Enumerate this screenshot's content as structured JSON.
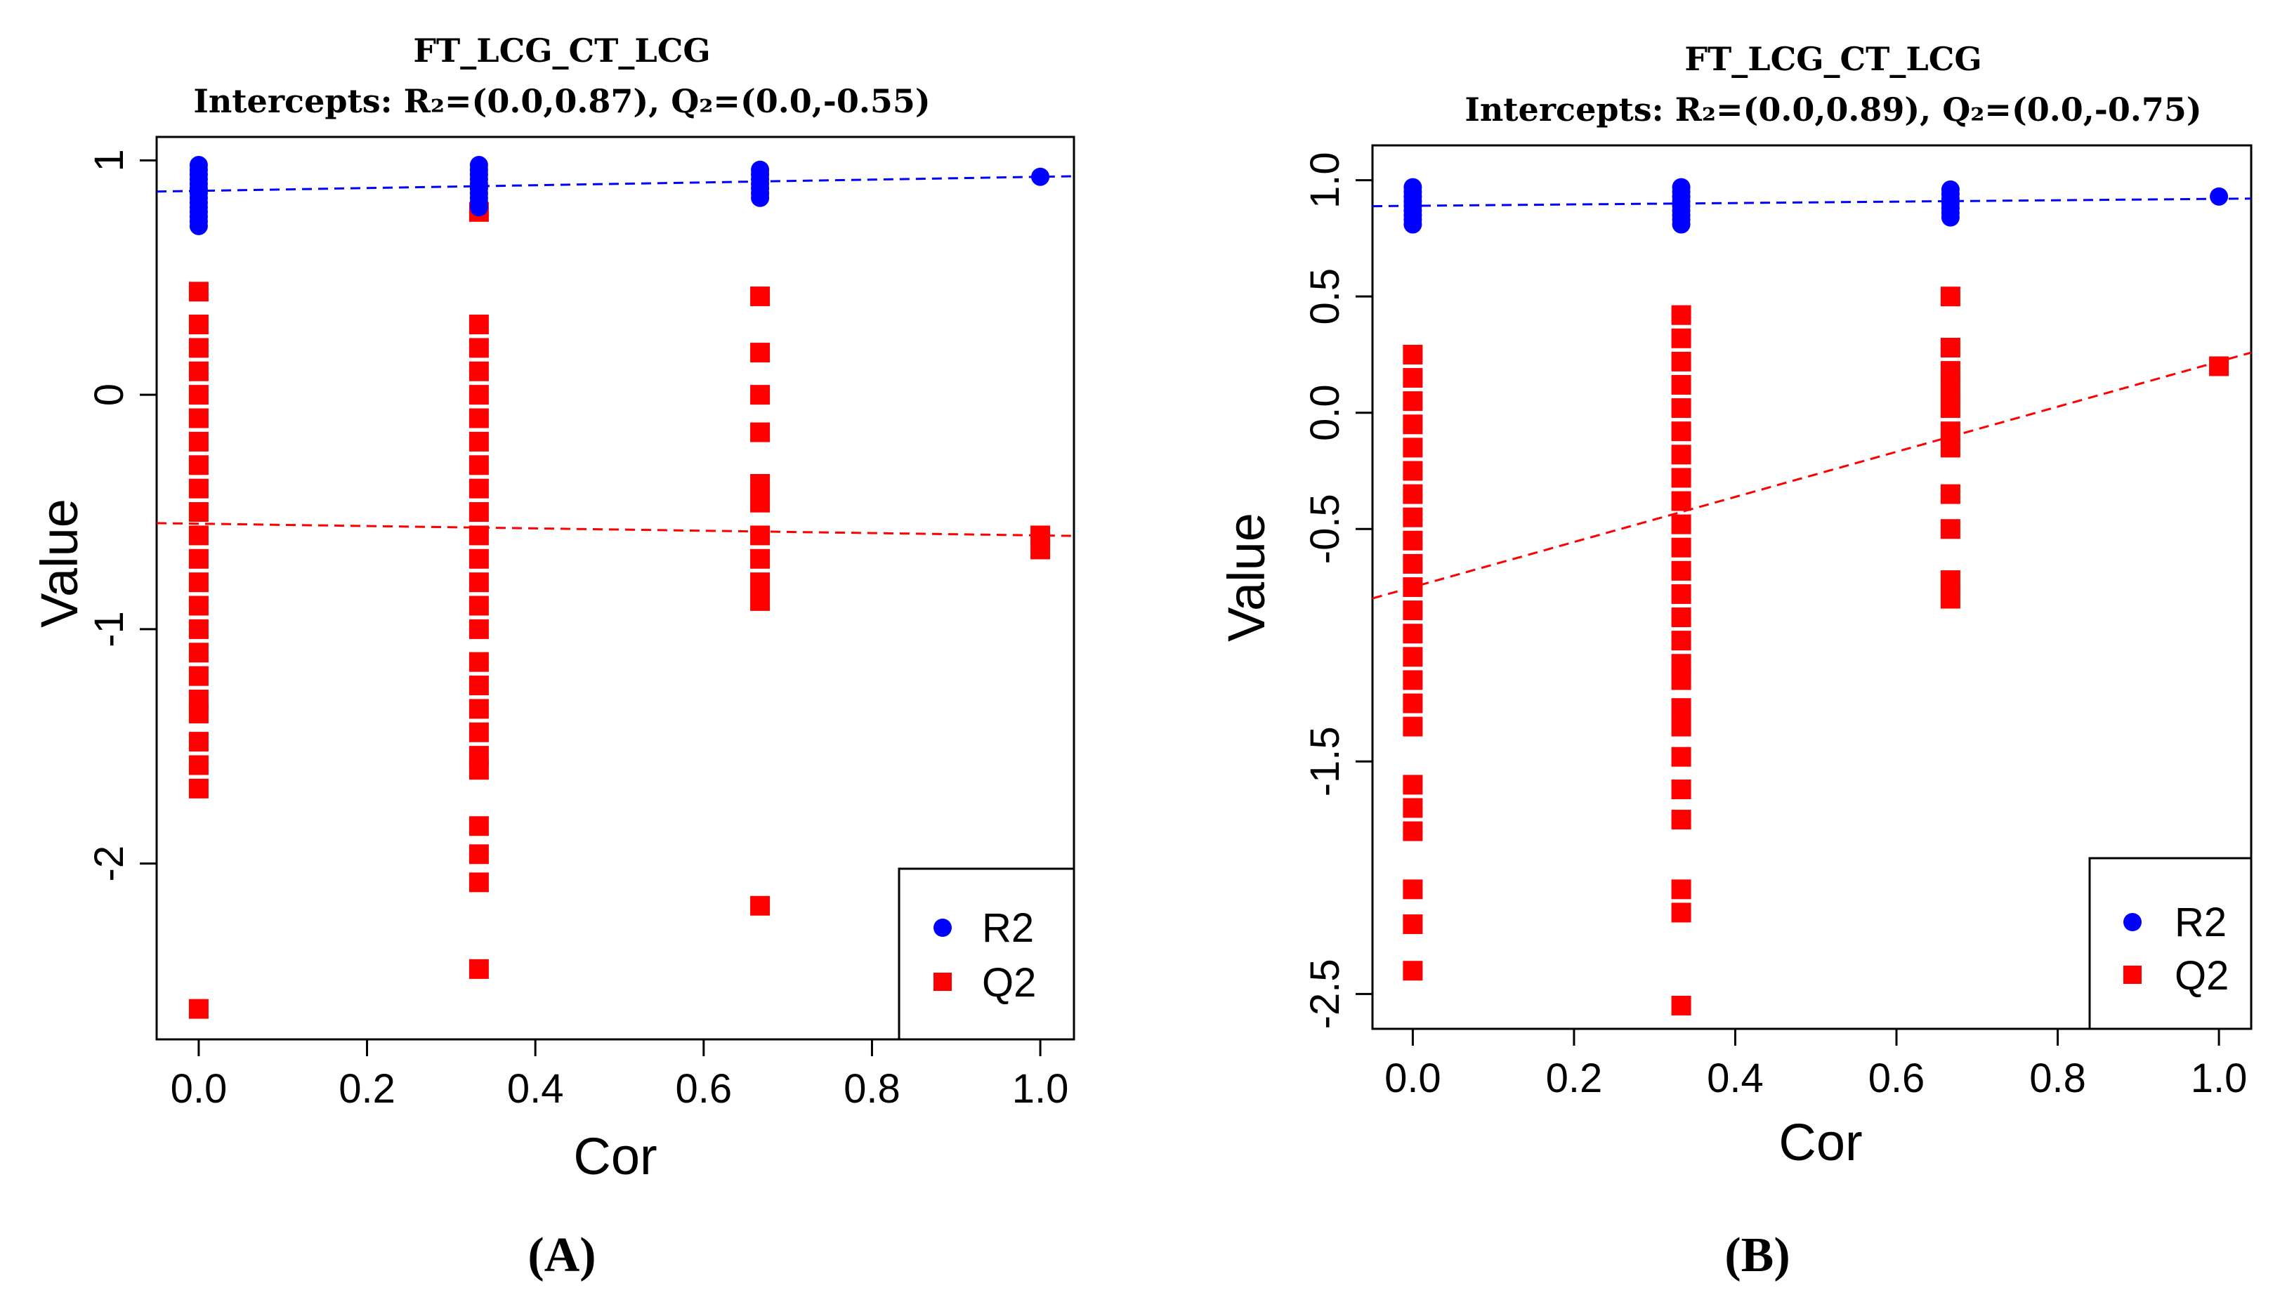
{
  "chart_data": [
    {
      "panel": "A",
      "panel_label": "(A)",
      "type": "scatter",
      "title": "FT_LCG_CT_LCG",
      "subtitle": "Intercepts: R₂=(0.0,0.87), Q₂=(0.0,-0.55)",
      "xlabel": "Cor",
      "ylabel": "Value",
      "xlim": [
        -0.05,
        1.04
      ],
      "ylim": [
        -2.75,
        1.1
      ],
      "xticks": [
        0.0,
        0.2,
        0.4,
        0.6,
        0.8,
        1.0
      ],
      "xtick_labels": [
        "0.0",
        "0.2",
        "0.4",
        "0.6",
        "0.8",
        "1.0"
      ],
      "yticks": [
        -2,
        -1,
        0,
        1
      ],
      "ytick_labels": [
        "-2",
        "-1",
        "0",
        "1"
      ],
      "legend": {
        "position": "bottom-right",
        "entries": [
          {
            "label": "R2",
            "color": "#0000ff",
            "shape": "circle"
          },
          {
            "label": "Q2",
            "color": "#ff0000",
            "shape": "square"
          }
        ]
      },
      "series": [
        {
          "name": "R2",
          "color": "#0000ff",
          "groups": [
            {
              "x": 0.0,
              "values": [
                0.98,
                0.96,
                0.94,
                0.92,
                0.9,
                0.88,
                0.86,
                0.84,
                0.82,
                0.8,
                0.78,
                0.76,
                0.74,
                0.72
              ]
            },
            {
              "x": 0.333,
              "values": [
                0.98,
                0.96,
                0.94,
                0.92,
                0.9,
                0.88,
                0.86,
                0.84,
                0.82,
                0.8
              ]
            },
            {
              "x": 0.667,
              "values": [
                0.96,
                0.94,
                0.92,
                0.9,
                0.88,
                0.86,
                0.84
              ]
            },
            {
              "x": 1.0,
              "values": [
                0.93
              ]
            }
          ],
          "regression": {
            "intercept": 0.87,
            "slope": 0.06
          }
        },
        {
          "name": "Q2",
          "color": "#ff0000",
          "groups": [
            {
              "x": 0.0,
              "values": [
                0.44,
                0.3,
                0.2,
                0.1,
                0.0,
                -0.1,
                -0.2,
                -0.3,
                -0.4,
                -0.5,
                -0.6,
                -0.7,
                -0.8,
                -0.9,
                -1.0,
                -1.1,
                -1.2,
                -1.3,
                -1.36,
                -1.48,
                -1.58,
                -1.68,
                -2.62
              ]
            },
            {
              "x": 0.333,
              "values": [
                0.78,
                0.3,
                0.2,
                0.1,
                0.0,
                -0.1,
                -0.2,
                -0.3,
                -0.4,
                -0.5,
                -0.6,
                -0.7,
                -0.8,
                -0.9,
                -1.0,
                -1.14,
                -1.24,
                -1.34,
                -1.44,
                -1.54,
                -1.6,
                -1.84,
                -1.96,
                -2.08,
                -2.45
              ]
            },
            {
              "x": 0.667,
              "values": [
                0.42,
                0.18,
                0.0,
                -0.16,
                -0.38,
                -0.46,
                -0.6,
                -0.7,
                -0.8,
                -0.88,
                -2.18
              ]
            },
            {
              "x": 1.0,
              "values": [
                -0.6,
                -0.66
              ]
            }
          ],
          "regression": {
            "intercept": -0.55,
            "slope": -0.05
          }
        }
      ]
    },
    {
      "panel": "B",
      "panel_label": "(B)",
      "type": "scatter",
      "title": "FT_LCG_CT_LCG",
      "subtitle": "Intercepts: R₂=(0.0,0.89), Q₂=(0.0,-0.75)",
      "xlabel": "Cor",
      "ylabel": "Value",
      "xlim": [
        -0.05,
        1.04
      ],
      "ylim": [
        -2.65,
        1.15
      ],
      "xticks": [
        0.0,
        0.2,
        0.4,
        0.6,
        0.8,
        1.0
      ],
      "xtick_labels": [
        "0.0",
        "0.2",
        "0.4",
        "0.6",
        "0.8",
        "1.0"
      ],
      "yticks": [
        -2.5,
        -1.5,
        -0.5,
        0.0,
        0.5,
        1.0
      ],
      "ytick_labels": [
        "-2.5",
        "-1.5",
        "-0.5",
        "0.0",
        "0.5",
        "1.0"
      ],
      "legend": {
        "position": "bottom-right",
        "entries": [
          {
            "label": "R2",
            "color": "#0000ff",
            "shape": "circle"
          },
          {
            "label": "Q2",
            "color": "#ff0000",
            "shape": "square"
          }
        ]
      },
      "series": [
        {
          "name": "R2",
          "color": "#0000ff",
          "groups": [
            {
              "x": 0.0,
              "values": [
                0.97,
                0.95,
                0.93,
                0.91,
                0.89,
                0.87,
                0.85,
                0.83,
                0.81
              ]
            },
            {
              "x": 0.333,
              "values": [
                0.97,
                0.95,
                0.93,
                0.91,
                0.89,
                0.87,
                0.85,
                0.83,
                0.81
              ]
            },
            {
              "x": 0.667,
              "values": [
                0.96,
                0.94,
                0.92,
                0.9,
                0.88,
                0.86,
                0.84
              ]
            },
            {
              "x": 1.0,
              "values": [
                0.93
              ]
            }
          ],
          "regression": {
            "intercept": 0.89,
            "slope": 0.03
          }
        },
        {
          "name": "Q2",
          "color": "#ff0000",
          "groups": [
            {
              "x": 0.0,
              "values": [
                0.25,
                0.15,
                0.05,
                -0.05,
                -0.15,
                -0.25,
                -0.35,
                -0.45,
                -0.55,
                -0.65,
                -0.75,
                -0.85,
                -0.95,
                -1.05,
                -1.15,
                -1.25,
                -1.35,
                -1.6,
                -1.7,
                -1.8,
                -2.05,
                -2.2,
                -2.4
              ]
            },
            {
              "x": 0.333,
              "values": [
                0.42,
                0.32,
                0.22,
                0.12,
                0.02,
                -0.08,
                -0.18,
                -0.28,
                -0.38,
                -0.48,
                -0.58,
                -0.68,
                -0.78,
                -0.88,
                -0.98,
                -1.08,
                -1.15,
                -1.27,
                -1.35,
                -1.48,
                -1.62,
                -1.75,
                -2.05,
                -2.15,
                -2.55
              ]
            },
            {
              "x": 0.667,
              "values": [
                0.5,
                0.28,
                0.18,
                0.1,
                0.02,
                -0.08,
                -0.15,
                -0.35,
                -0.5,
                -0.72,
                -0.8
              ]
            },
            {
              "x": 1.0,
              "values": [
                0.2
              ]
            }
          ],
          "regression": {
            "intercept": -0.75,
            "slope": 0.97
          }
        }
      ]
    }
  ]
}
